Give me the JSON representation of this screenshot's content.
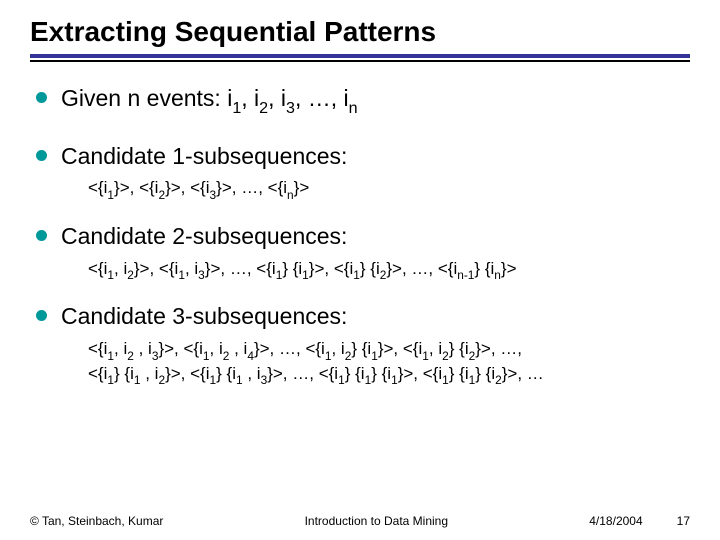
{
  "title": "Extracting Sequential Patterns",
  "bullets": [
    {
      "label": "Given n events:   i<sub>1</sub>, i<sub>2</sub>, i<sub>3</sub>, …, i<sub>n</sub>",
      "sub": null
    },
    {
      "label": "Candidate 1-subsequences:",
      "sub": "<{i<sub>1</sub>}>, <{i<sub>2</sub>}>, <{i<sub>3</sub>}>, …, <{i<sub>n</sub>}>"
    },
    {
      "label": "Candidate 2-subsequences:",
      "sub": "<{i<sub>1</sub>, i<sub>2</sub>}>, <{i<sub>1</sub>, i<sub>3</sub>}>, …, <{i<sub>1</sub>} {i<sub>1</sub>}>, <{i<sub>1</sub>} {i<sub>2</sub>}>, …, <{i<sub>n-1</sub>} {i<sub>n</sub>}>"
    },
    {
      "label": "Candidate 3-subsequences:",
      "sub": "<{i<sub>1</sub>, i<sub>2</sub> , i<sub>3</sub>}>, <{i<sub>1</sub>, i<sub>2</sub> , i<sub>4</sub>}>, …, <{i<sub>1</sub>, i<sub>2</sub>} {i<sub>1</sub>}>, <{i<sub>1</sub>, i<sub>2</sub>} {i<sub>2</sub>}>, …,<br><{i<sub>1</sub>} {i<sub>1</sub> , i<sub>2</sub>}>, <{i<sub>1</sub>} {i<sub>1</sub> , i<sub>3</sub>}>, …, <{i<sub>1</sub>} {i<sub>1</sub>} {i<sub>1</sub>}>, <{i<sub>1</sub>} {i<sub>1</sub>} {i<sub>2</sub>}>, …"
    }
  ],
  "footer": {
    "copyright": "© Tan, Steinbach, Kumar",
    "center": "Introduction to Data Mining",
    "date": "4/18/2004",
    "page": "17"
  },
  "colors": {
    "bullet": "#009999",
    "divider": "#333399",
    "text": "#000000",
    "background": "#ffffff"
  }
}
